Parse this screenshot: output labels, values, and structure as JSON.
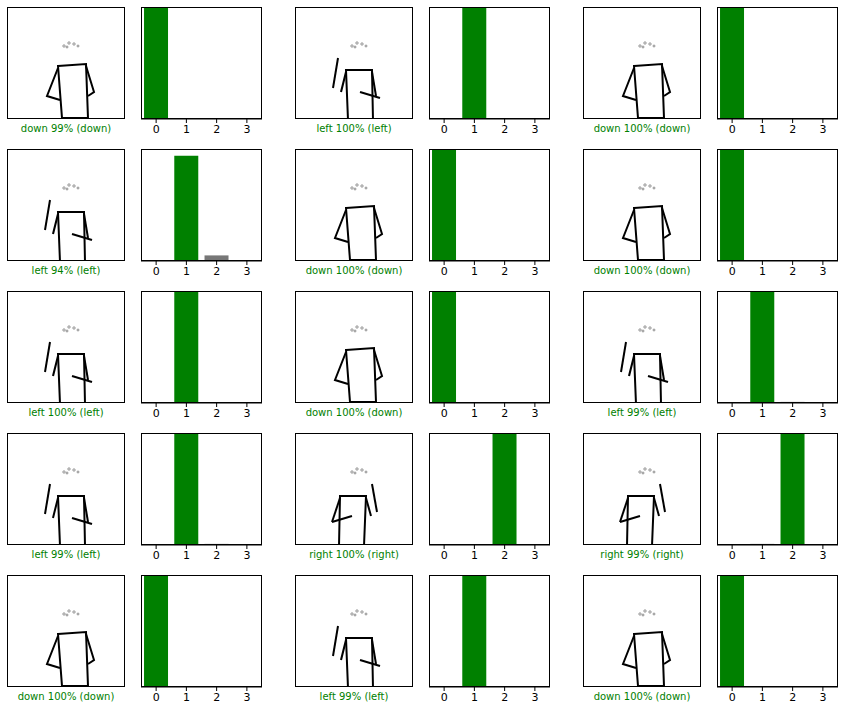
{
  "chart_data": [
    {
      "type": "bar",
      "annotation": "down 99% (down)",
      "categories": [
        0,
        1,
        2,
        3
      ],
      "values": [
        99,
        0,
        0,
        0
      ],
      "colors": [
        "#008000",
        "#777777",
        "#777777",
        "#777777"
      ],
      "ylim": [
        0,
        100
      ],
      "tick_labels": "x"
    },
    {
      "type": "bar",
      "annotation": "left 100% (left)",
      "categories": [
        0,
        1,
        2,
        3
      ],
      "values": [
        0,
        100,
        0,
        0
      ],
      "colors": [
        "#777777",
        "#008000",
        "#777777",
        "#777777"
      ],
      "ylim": [
        0,
        100
      ],
      "tick_labels": "x"
    },
    {
      "type": "bar",
      "annotation": "down 100% (down)",
      "categories": [
        0,
        1,
        2,
        3
      ],
      "values": [
        100,
        0,
        0,
        0
      ],
      "colors": [
        "#008000",
        "#777777",
        "#777777",
        "#777777"
      ],
      "ylim": [
        0,
        100
      ],
      "tick_labels": "x"
    },
    {
      "type": "bar",
      "annotation": "left 94% (left)",
      "categories": [
        0,
        1,
        2,
        3
      ],
      "values": [
        0,
        94,
        5,
        0
      ],
      "colors": [
        "#777777",
        "#008000",
        "#777777",
        "#777777"
      ],
      "ylim": [
        0,
        100
      ],
      "tick_labels": "x"
    },
    {
      "type": "bar",
      "annotation": "down 100% (down)",
      "categories": [
        0,
        1,
        2,
        3
      ],
      "values": [
        100,
        0,
        0,
        0
      ],
      "colors": [
        "#008000",
        "#777777",
        "#777777",
        "#777777"
      ],
      "ylim": [
        0,
        100
      ],
      "tick_labels": "x"
    },
    {
      "type": "bar",
      "annotation": "down 100% (down)",
      "categories": [
        0,
        1,
        2,
        3
      ],
      "values": [
        100,
        0,
        0,
        0
      ],
      "colors": [
        "#008000",
        "#777777",
        "#777777",
        "#777777"
      ],
      "ylim": [
        0,
        100
      ],
      "tick_labels": "x"
    },
    {
      "type": "bar",
      "annotation": "left 100% (left)",
      "categories": [
        0,
        1,
        2,
        3
      ],
      "values": [
        0,
        100,
        0,
        0
      ],
      "colors": [
        "#777777",
        "#008000",
        "#777777",
        "#777777"
      ],
      "ylim": [
        0,
        100
      ],
      "tick_labels": "x"
    },
    {
      "type": "bar",
      "annotation": "down 100% (down)",
      "categories": [
        0,
        1,
        2,
        3
      ],
      "values": [
        100,
        0,
        0,
        0
      ],
      "colors": [
        "#008000",
        "#777777",
        "#777777",
        "#777777"
      ],
      "ylim": [
        0,
        100
      ],
      "tick_labels": "x"
    },
    {
      "type": "bar",
      "annotation": "left 99% (left)",
      "categories": [
        0,
        1,
        2,
        3
      ],
      "values": [
        0,
        99,
        1,
        0
      ],
      "colors": [
        "#777777",
        "#008000",
        "#777777",
        "#777777"
      ],
      "ylim": [
        0,
        100
      ],
      "tick_labels": "x"
    },
    {
      "type": "bar",
      "annotation": "left 99% (left)",
      "categories": [
        0,
        1,
        2,
        3
      ],
      "values": [
        0,
        99,
        1,
        0
      ],
      "colors": [
        "#777777",
        "#008000",
        "#777777",
        "#777777"
      ],
      "ylim": [
        0,
        100
      ],
      "tick_labels": "x"
    },
    {
      "type": "bar",
      "annotation": "right 100% (right)",
      "categories": [
        0,
        1,
        2,
        3
      ],
      "values": [
        0,
        0,
        100,
        0
      ],
      "colors": [
        "#777777",
        "#777777",
        "#008000",
        "#777777"
      ],
      "ylim": [
        0,
        100
      ],
      "tick_labels": "x"
    },
    {
      "type": "bar",
      "annotation": "right 99% (right)",
      "categories": [
        0,
        1,
        2,
        3
      ],
      "values": [
        0,
        1,
        99,
        0
      ],
      "colors": [
        "#777777",
        "#777777",
        "#008000",
        "#777777"
      ],
      "ylim": [
        0,
        100
      ],
      "tick_labels": "x"
    },
    {
      "type": "bar",
      "annotation": "down 100% (down)",
      "categories": [
        0,
        1,
        2,
        3
      ],
      "values": [
        100,
        0,
        0,
        0
      ],
      "colors": [
        "#008000",
        "#777777",
        "#777777",
        "#777777"
      ],
      "ylim": [
        0,
        100
      ],
      "tick_labels": "x"
    },
    {
      "type": "bar",
      "annotation": "left 99% (left)",
      "categories": [
        0,
        1,
        2,
        3
      ],
      "values": [
        0.5,
        99,
        0.5,
        0
      ],
      "colors": [
        "#777777",
        "#008000",
        "#777777",
        "#777777"
      ],
      "ylim": [
        0,
        100
      ],
      "tick_labels": "x"
    },
    {
      "type": "bar",
      "annotation": "down 100% (down)",
      "categories": [
        0,
        1,
        2,
        3
      ],
      "values": [
        100,
        0,
        0,
        0
      ],
      "colors": [
        "#008000",
        "#777777",
        "#777777",
        "#777777"
      ],
      "ylim": [
        0,
        100
      ],
      "tick_labels": "x"
    }
  ]
}
